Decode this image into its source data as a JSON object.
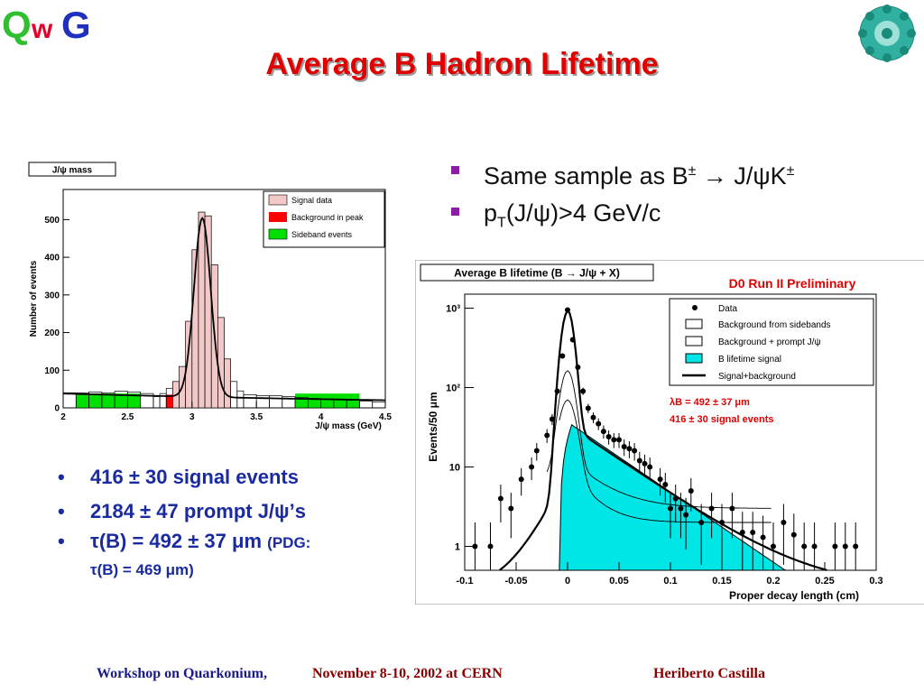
{
  "logos": {
    "left": "QWG",
    "right": "emblem"
  },
  "slide_title": "Average B Hadron Lifetime",
  "top_bullets": [
    {
      "a": "Same sample as B",
      "sup1": "±",
      "b": " → J/",
      "psi": "ψ",
      "c": "K",
      "sup2": "±"
    },
    {
      "a": "p",
      "sub": "T",
      "b": "(J/",
      "psi": "ψ",
      "c": ")>4 GeV/c"
    }
  ],
  "bottom_bullets": [
    {
      "dot": "•",
      "text": "416 ± 30 signal events"
    },
    {
      "dot": "•",
      "text": "2184 ± 47 prompt J/ψ’s"
    },
    {
      "dot": "•",
      "text": "τ(B) = 492 ± 37 μm",
      "small": "(PDG:",
      "line2": "τ(B) = 469 μm)"
    }
  ],
  "footer": {
    "event": "Workshop on Quarkonium, ",
    "dates": "November 8-10, 2002 at CERN",
    "author": "Heriberto Castilla"
  },
  "chart_data": [
    {
      "type": "bar",
      "title": "J/ψ mass",
      "xlabel": "J/ψ mass (GeV)",
      "ylabel": "Number of events",
      "xlim": [
        2,
        4.5
      ],
      "ylim": [
        0,
        580
      ],
      "xticks": [
        "2",
        "2.5",
        "3",
        "3.5",
        "4",
        "4.5"
      ],
      "yticks": [
        "0",
        "100",
        "200",
        "300",
        "400",
        "500"
      ],
      "legend_placement": "top-right",
      "series": [
        {
          "name": "Signal data",
          "color": "#f2c8c8",
          "hatch": true,
          "bins": [
            [
              2.0,
              40
            ],
            [
              2.1,
              40
            ],
            [
              2.2,
              42
            ],
            [
              2.3,
              40
            ],
            [
              2.4,
              44
            ],
            [
              2.5,
              42
            ],
            [
              2.6,
              38
            ],
            [
              2.7,
              30
            ],
            [
              2.75,
              38
            ],
            [
              2.8,
              52
            ],
            [
              2.85,
              70
            ],
            [
              2.9,
              110
            ],
            [
              2.95,
              230
            ],
            [
              3.0,
              420
            ],
            [
              3.05,
              520
            ],
            [
              3.1,
              510
            ],
            [
              3.15,
              380
            ],
            [
              3.2,
              240
            ],
            [
              3.25,
              130
            ],
            [
              3.3,
              70
            ],
            [
              3.35,
              45
            ],
            [
              3.4,
              35
            ],
            [
              3.5,
              32
            ],
            [
              3.6,
              32
            ],
            [
              3.7,
              30
            ],
            [
              3.8,
              28
            ],
            [
              3.9,
              25
            ],
            [
              4.0,
              24
            ],
            [
              4.1,
              22
            ],
            [
              4.2,
              20
            ],
            [
              4.3,
              18
            ],
            [
              4.4,
              16
            ]
          ]
        },
        {
          "name": "Background in peak",
          "color": "#ff0000",
          "range": [
            2.8,
            3.3
          ],
          "value": 35
        },
        {
          "name": "Sideband events",
          "color": "#00e000",
          "ranges": [
            [
              2.1,
              2.6
            ],
            [
              3.8,
              4.3
            ]
          ],
          "value": 38
        }
      ]
    },
    {
      "type": "scatter",
      "title": "Average B lifetime (B → J/ψ + X)",
      "xlabel": "Proper decay length (cm)",
      "ylabel": "Events/50 μm",
      "annotation_header": "D0 Run II Preliminary",
      "annotations": [
        "λB = 492 ± 37 μm",
        "416 ± 30 signal events"
      ],
      "y_scale": "log",
      "xlim": [
        -0.1,
        0.3
      ],
      "ylim": [
        0.5,
        1500
      ],
      "xticks": [
        "-0.1",
        "-0.05",
        "0",
        "0.05",
        "0.1",
        "0.15",
        "0.2",
        "0.25",
        "0.3"
      ],
      "yticks": [
        "1",
        "10",
        "10²",
        "10³"
      ],
      "legend_placement": "top-right",
      "legend": [
        "Data",
        "Background from sidebands",
        "Background + prompt J/ψ",
        "B lifetime signal",
        "Signal+background"
      ],
      "data_points": [
        [
          -0.09,
          1
        ],
        [
          -0.075,
          1
        ],
        [
          -0.065,
          4
        ],
        [
          -0.055,
          3
        ],
        [
          -0.045,
          7
        ],
        [
          -0.035,
          10
        ],
        [
          -0.03,
          16
        ],
        [
          -0.02,
          25
        ],
        [
          -0.015,
          40
        ],
        [
          -0.01,
          90
        ],
        [
          -0.005,
          250
        ],
        [
          0.0,
          950
        ],
        [
          0.005,
          400
        ],
        [
          0.01,
          180
        ],
        [
          0.015,
          90
        ],
        [
          0.02,
          55
        ],
        [
          0.025,
          42
        ],
        [
          0.03,
          35
        ],
        [
          0.035,
          28
        ],
        [
          0.04,
          24
        ],
        [
          0.045,
          22
        ],
        [
          0.05,
          22
        ],
        [
          0.055,
          18
        ],
        [
          0.06,
          17
        ],
        [
          0.065,
          16
        ],
        [
          0.07,
          12
        ],
        [
          0.075,
          11
        ],
        [
          0.08,
          10
        ],
        [
          0.09,
          7
        ],
        [
          0.095,
          6
        ],
        [
          0.1,
          3
        ],
        [
          0.105,
          4
        ],
        [
          0.11,
          3
        ],
        [
          0.115,
          2.5
        ],
        [
          0.12,
          5
        ],
        [
          0.13,
          2
        ],
        [
          0.14,
          3
        ],
        [
          0.15,
          2
        ],
        [
          0.16,
          3
        ],
        [
          0.17,
          1.5
        ],
        [
          0.18,
          1.5
        ],
        [
          0.19,
          1.3
        ],
        [
          0.2,
          1
        ],
        [
          0.21,
          2
        ],
        [
          0.22,
          1.4
        ],
        [
          0.23,
          1
        ],
        [
          0.24,
          1
        ],
        [
          0.26,
          1
        ],
        [
          0.27,
          1
        ],
        [
          0.28,
          1
        ]
      ],
      "signal_band": {
        "tau_cm": 0.0492,
        "peak": 34,
        "x0": 0.0
      }
    }
  ]
}
